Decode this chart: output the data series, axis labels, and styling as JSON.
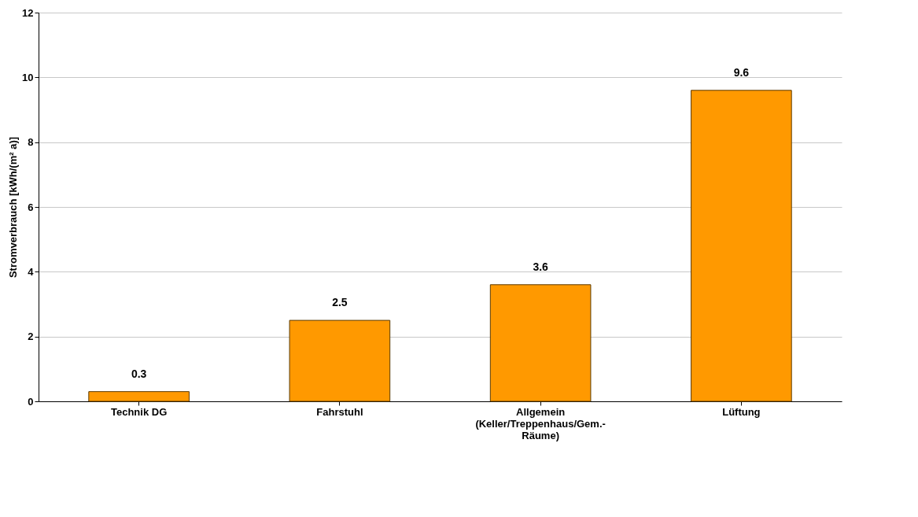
{
  "chart_data": {
    "type": "bar",
    "ylabel": "Stromverbrauch [kWh/(m² a)]",
    "categories": [
      "Technik DG",
      "Fahrstuhl",
      "Allgemein\n(Keller/Treppenhaus/Gem.-\nRäume)",
      "Lüftung"
    ],
    "values": [
      0.3,
      2.5,
      3.6,
      9.6
    ],
    "color": "#ff9900",
    "ylim": [
      0,
      12
    ],
    "yticks": [
      0,
      2,
      4,
      6,
      8,
      10,
      12
    ],
    "grid": "y",
    "data_labels": true
  }
}
